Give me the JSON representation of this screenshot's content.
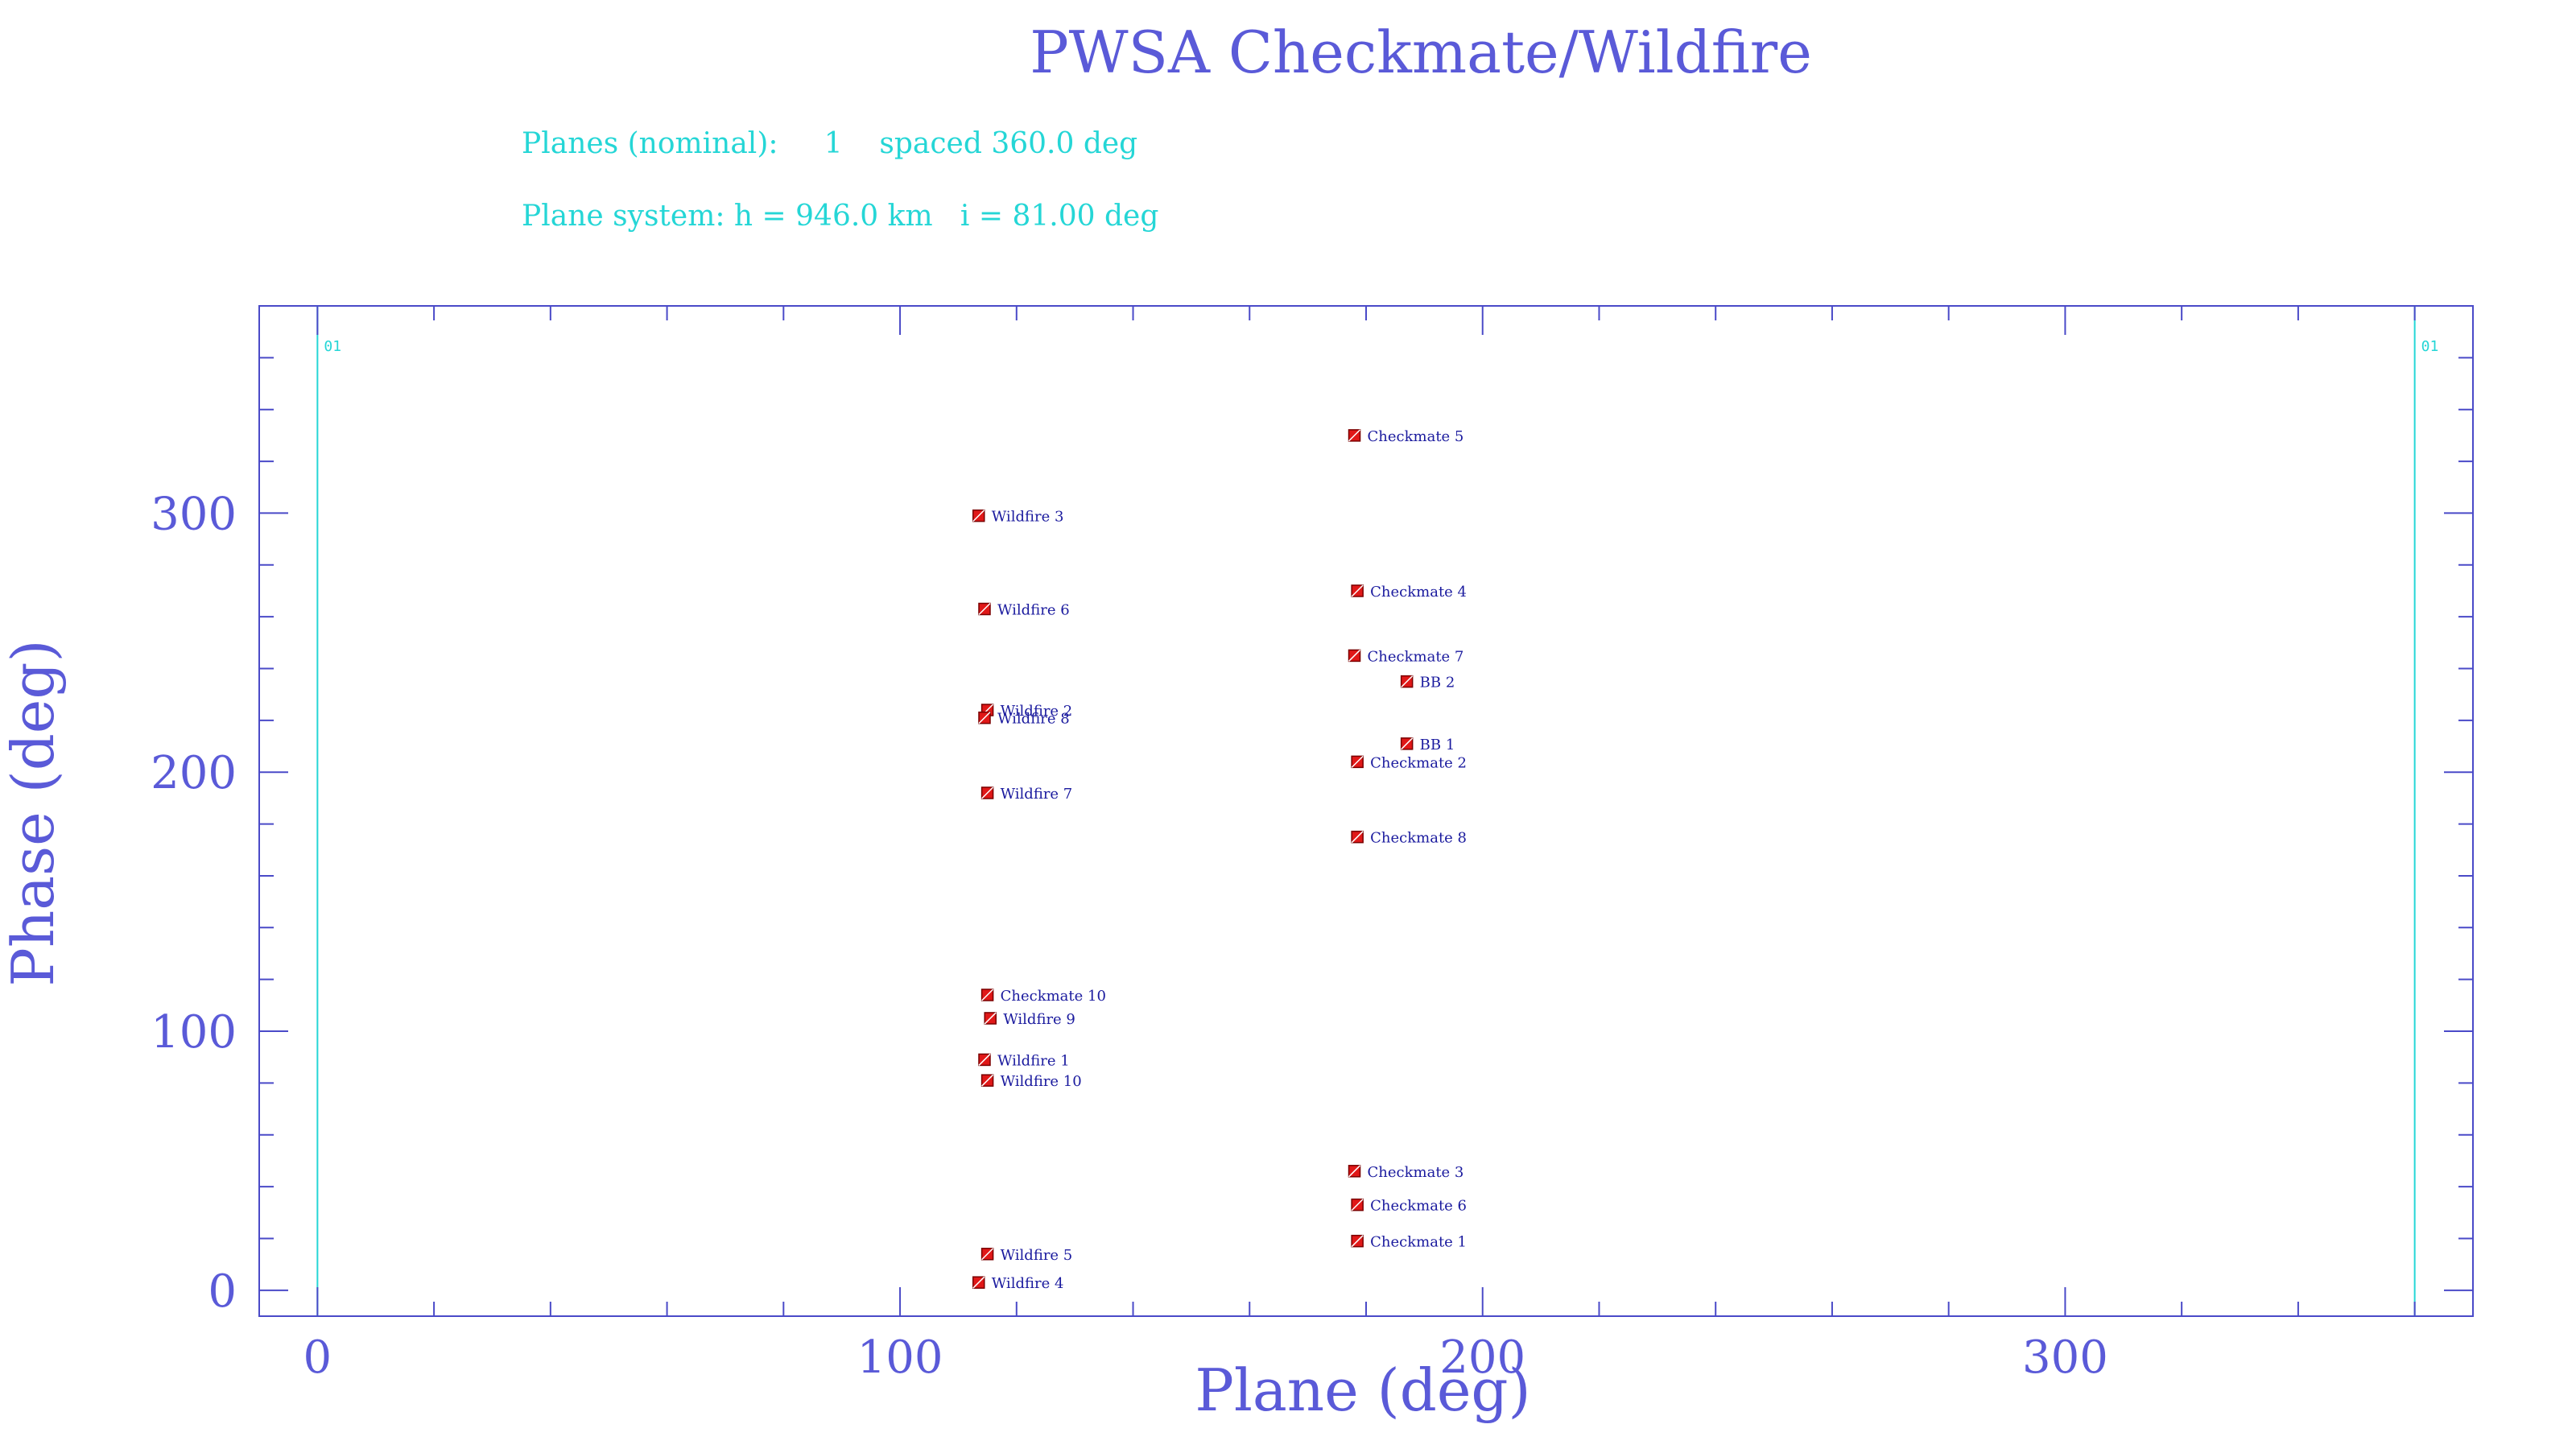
{
  "colors": {
    "axis": "#4a4ac8",
    "text": "#5a5ad8",
    "info": "#25d6d6",
    "plane_line": "#25d6d6",
    "marker_fill": "#e01818",
    "marker_edge": "#7a0000",
    "sat_label": "#1a1a9e"
  },
  "header": {
    "title": "PWSA Checkmate/Wildfire",
    "line1": "Planes (nominal):     1    spaced 360.0 deg",
    "line2": "Plane system: h = 946.0 km   i = 81.00 deg"
  },
  "chart_data": {
    "type": "scatter",
    "title": "PWSA Checkmate/Wildfire",
    "xlabel": "Plane (deg)",
    "ylabel": "Phase (deg)",
    "xlim": [
      -10,
      370
    ],
    "ylim": [
      -10,
      380
    ],
    "x_major_ticks": [
      0,
      100,
      200,
      300
    ],
    "x_minor_step": 20,
    "y_major_ticks": [
      0,
      100,
      200,
      300
    ],
    "y_minor_step": 20,
    "plane_lines": [
      {
        "x": 0,
        "label": "01"
      },
      {
        "x": 360,
        "label": "01"
      }
    ],
    "points": [
      {
        "name": "Checkmate 5",
        "x": 178.0,
        "y": 330
      },
      {
        "name": "Wildfire 3",
        "x": 113.5,
        "y": 299
      },
      {
        "name": "Checkmate 4",
        "x": 178.5,
        "y": 270
      },
      {
        "name": "Wildfire 6",
        "x": 114.5,
        "y": 263
      },
      {
        "name": "Checkmate 7",
        "x": 178.0,
        "y": 245
      },
      {
        "name": "BB 2",
        "x": 187.0,
        "y": 235
      },
      {
        "name": "Wildfire 2",
        "x": 115.0,
        "y": 224
      },
      {
        "name": "Wildfire 8",
        "x": 114.5,
        "y": 221
      },
      {
        "name": "BB 1",
        "x": 187.0,
        "y": 211
      },
      {
        "name": "Checkmate 2",
        "x": 178.5,
        "y": 204
      },
      {
        "name": "Wildfire 7",
        "x": 115.0,
        "y": 192
      },
      {
        "name": "Checkmate 8",
        "x": 178.5,
        "y": 175
      },
      {
        "name": "Checkmate 10",
        "x": 115.0,
        "y": 114
      },
      {
        "name": "Wildfire 9",
        "x": 115.5,
        "y": 105
      },
      {
        "name": "Wildfire 1",
        "x": 114.5,
        "y": 89
      },
      {
        "name": "Wildfire 10",
        "x": 115.0,
        "y": 81
      },
      {
        "name": "Checkmate 3",
        "x": 178.0,
        "y": 46
      },
      {
        "name": "Checkmate 6",
        "x": 178.5,
        "y": 33
      },
      {
        "name": "Checkmate 1",
        "x": 178.5,
        "y": 19
      },
      {
        "name": "Wildfire 5",
        "x": 115.0,
        "y": 14
      },
      {
        "name": "Wildfire 4",
        "x": 113.5,
        "y": 3
      }
    ]
  }
}
